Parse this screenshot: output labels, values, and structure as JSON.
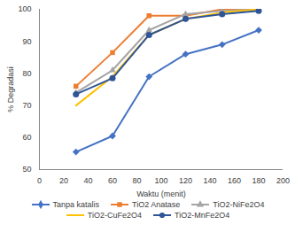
{
  "chart_data": {
    "type": "line",
    "x_label": "Waktu (menit)",
    "y_label": "% Degradasi",
    "x": [
      30,
      60,
      90,
      120,
      150,
      180
    ],
    "xlim": [
      0,
      200
    ],
    "xticks": [
      0,
      20,
      40,
      60,
      80,
      100,
      120,
      140,
      160,
      180,
      200
    ],
    "ylim": [
      50,
      100
    ],
    "yticks": [
      50,
      60,
      70,
      80,
      90,
      100
    ],
    "grid": false,
    "legend": "bottom",
    "series": [
      {
        "name": "Tanpa katalis",
        "color": "#4472c4",
        "marker": "diamond",
        "values": [
          55.5,
          60.5,
          79,
          86,
          89,
          93.5
        ]
      },
      {
        "name": "TiO2 Anatase",
        "color": "#ed7d31",
        "marker": "square",
        "values": [
          76,
          86.5,
          98,
          98,
          100,
          100
        ]
      },
      {
        "name": "TiO2-NiFe2O4",
        "color": "#a5a5a5",
        "marker": "triangle",
        "values": [
          74,
          81,
          93.5,
          98.5,
          99.5,
          100
        ]
      },
      {
        "name": "TiO2-CuFe2O4",
        "color": "#ffc000",
        "marker": "none",
        "values": [
          70,
          79,
          92,
          97,
          99,
          100
        ]
      },
      {
        "name": "TiO2-MnFe2O4",
        "color": "#2f5597",
        "marker": "circle",
        "values": [
          73.5,
          78.5,
          92,
          97,
          98.5,
          99.5
        ]
      }
    ]
  }
}
